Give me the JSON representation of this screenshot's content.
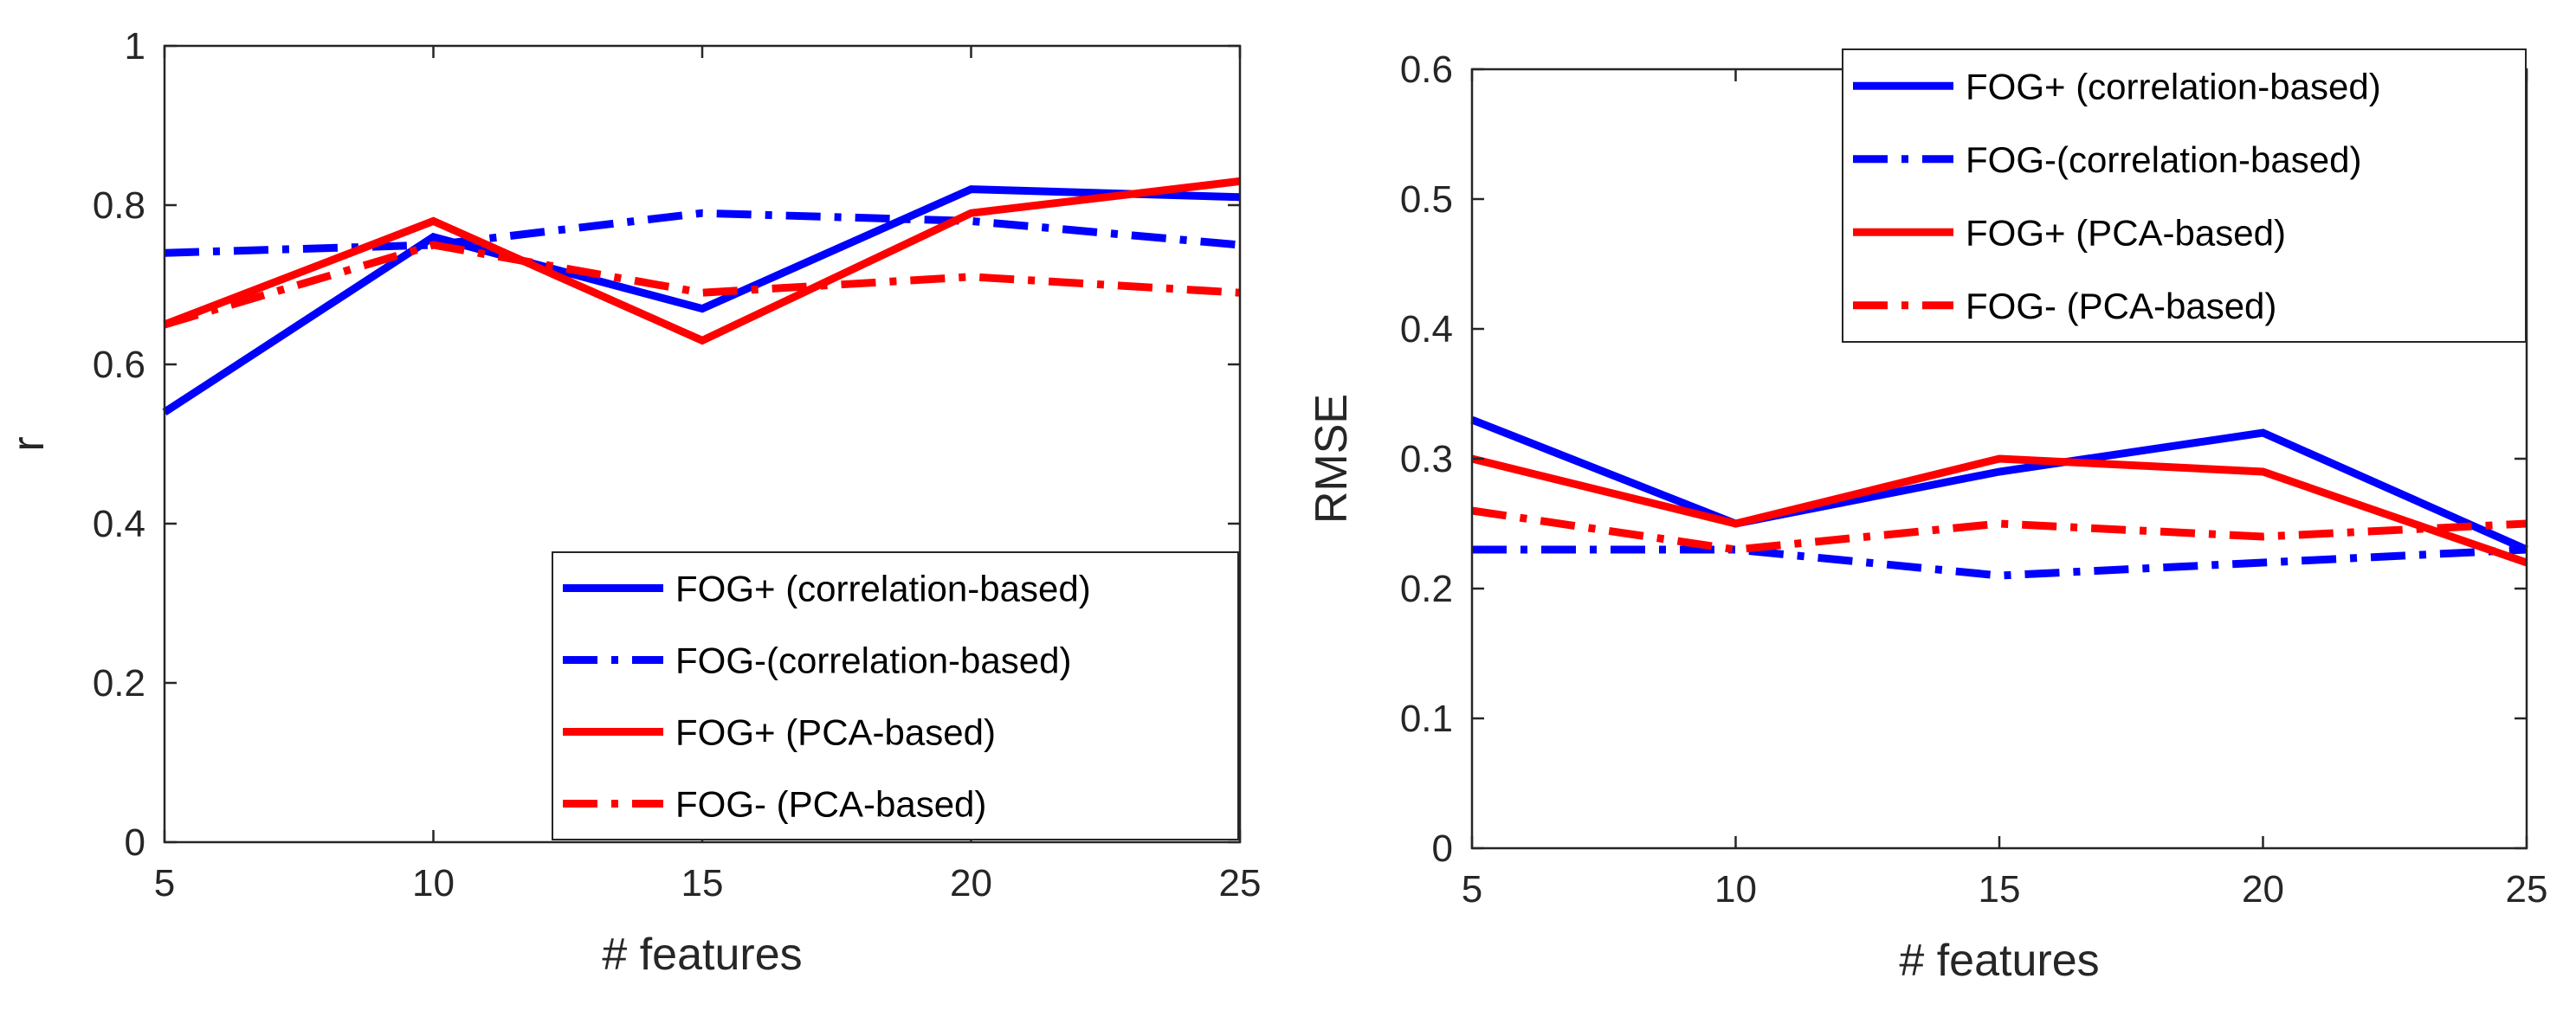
{
  "chart_data": [
    {
      "type": "line",
      "title": "",
      "xlabel": "# features",
      "ylabel": "r",
      "x": [
        5,
        10,
        15,
        20,
        25
      ],
      "xlim": [
        5,
        25
      ],
      "ylim": [
        0,
        1
      ],
      "xticks": [
        5,
        10,
        15,
        20,
        25
      ],
      "yticks": [
        0,
        0.2,
        0.4,
        0.6,
        0.8,
        1
      ],
      "ytick_labels": [
        "0",
        "0.2",
        "0.4",
        "0.6",
        "0.8",
        "1"
      ],
      "grid": false,
      "legend_position": "bottom-right",
      "series": [
        {
          "name": "FOG+ (correlation-based)",
          "color": "#0000ff",
          "style": "solid",
          "values": [
            0.54,
            0.76,
            0.67,
            0.82,
            0.81
          ]
        },
        {
          "name": "FOG-(correlation-based)",
          "color": "#0000ff",
          "style": "dashdot",
          "values": [
            0.74,
            0.75,
            0.79,
            0.78,
            0.75
          ]
        },
        {
          "name": "FOG+ (PCA-based)",
          "color": "#ff0000",
          "style": "solid",
          "values": [
            0.65,
            0.78,
            0.63,
            0.79,
            0.83
          ]
        },
        {
          "name": "FOG- (PCA-based)",
          "color": "#ff0000",
          "style": "dashdot",
          "values": [
            0.65,
            0.75,
            0.69,
            0.71,
            0.69
          ]
        }
      ]
    },
    {
      "type": "line",
      "title": "",
      "xlabel": "# features",
      "ylabel": "RMSE",
      "x": [
        5,
        10,
        15,
        20,
        25
      ],
      "xlim": [
        5,
        25
      ],
      "ylim": [
        0,
        0.6
      ],
      "xticks": [
        5,
        10,
        15,
        20,
        25
      ],
      "yticks": [
        0,
        0.1,
        0.2,
        0.3,
        0.4,
        0.5,
        0.6
      ],
      "ytick_labels": [
        "0",
        "0.1",
        "0.2",
        "0.3",
        "0.4",
        "0.5",
        "0.6"
      ],
      "grid": false,
      "legend_position": "top-right",
      "series": [
        {
          "name": "FOG+ (correlation-based)",
          "color": "#0000ff",
          "style": "solid",
          "values": [
            0.33,
            0.25,
            0.29,
            0.32,
            0.23
          ]
        },
        {
          "name": "FOG-(correlation-based)",
          "color": "#0000ff",
          "style": "dashdot",
          "values": [
            0.23,
            0.23,
            0.21,
            0.22,
            0.23
          ]
        },
        {
          "name": "FOG+ (PCA-based)",
          "color": "#ff0000",
          "style": "solid",
          "values": [
            0.3,
            0.25,
            0.3,
            0.29,
            0.22
          ]
        },
        {
          "name": "FOG- (PCA-based)",
          "color": "#ff0000",
          "style": "dashdot",
          "values": [
            0.26,
            0.23,
            0.25,
            0.24,
            0.25
          ]
        }
      ]
    }
  ]
}
